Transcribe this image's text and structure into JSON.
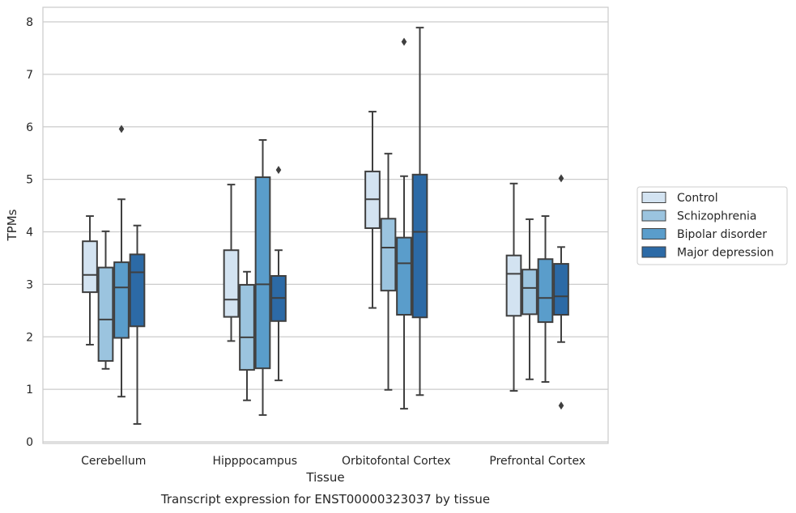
{
  "chart_data": {
    "type": "boxplot",
    "caption": "Transcript expression for ENST00000323037 by tissue",
    "xlabel": "Tissue",
    "ylabel": "TPMs",
    "ylim": [
      0,
      8
    ],
    "yticks": [
      0,
      1,
      2,
      3,
      4,
      5,
      6,
      7,
      8
    ],
    "grid": "horizontal",
    "legend_position": "right",
    "categories": [
      "Cerebellum",
      "Hipppocampus",
      "Orbitofontal Cortex",
      "Prefrontal Cortex"
    ],
    "series": [
      {
        "name": "Control",
        "color": "#d3e3f1",
        "boxes": [
          {
            "whislo": 1.85,
            "q1": 2.85,
            "med": 3.18,
            "q3": 3.82,
            "whishi": 4.3,
            "fliers": []
          },
          {
            "whislo": 1.92,
            "q1": 2.38,
            "med": 2.71,
            "q3": 3.65,
            "whishi": 4.9,
            "fliers": []
          },
          {
            "whislo": 2.55,
            "q1": 4.07,
            "med": 4.62,
            "q3": 5.15,
            "whishi": 6.29,
            "fliers": []
          },
          {
            "whislo": 0.97,
            "q1": 2.4,
            "med": 3.2,
            "q3": 3.55,
            "whishi": 4.92,
            "fliers": []
          }
        ]
      },
      {
        "name": "Schizophrenia",
        "color": "#9bc4df",
        "boxes": [
          {
            "whislo": 1.39,
            "q1": 1.54,
            "med": 2.33,
            "q3": 3.32,
            "whishi": 4.01,
            "fliers": []
          },
          {
            "whislo": 0.79,
            "q1": 1.37,
            "med": 1.99,
            "q3": 2.99,
            "whishi": 3.24,
            "fliers": []
          },
          {
            "whislo": 0.99,
            "q1": 2.88,
            "med": 3.7,
            "q3": 4.25,
            "whishi": 5.49,
            "fliers": []
          },
          {
            "whislo": 1.19,
            "q1": 2.43,
            "med": 2.93,
            "q3": 3.28,
            "whishi": 4.24,
            "fliers": []
          }
        ]
      },
      {
        "name": "Bipolar disorder",
        "color": "#5a9dcb",
        "boxes": [
          {
            "whislo": 0.86,
            "q1": 1.98,
            "med": 2.94,
            "q3": 3.42,
            "whishi": 4.62,
            "fliers": [
              5.96
            ]
          },
          {
            "whislo": 0.51,
            "q1": 1.4,
            "med": 3.0,
            "q3": 5.04,
            "whishi": 5.75,
            "fliers": []
          },
          {
            "whislo": 0.63,
            "q1": 2.42,
            "med": 3.4,
            "q3": 3.89,
            "whishi": 5.06,
            "fliers": [
              7.62
            ]
          },
          {
            "whislo": 1.14,
            "q1": 2.28,
            "med": 2.74,
            "q3": 3.48,
            "whishi": 4.3,
            "fliers": []
          }
        ]
      },
      {
        "name": "Major depression",
        "color": "#2c6aa6",
        "boxes": [
          {
            "whislo": 0.34,
            "q1": 2.2,
            "med": 3.23,
            "q3": 3.57,
            "whishi": 4.12,
            "fliers": []
          },
          {
            "whislo": 1.17,
            "q1": 2.3,
            "med": 2.74,
            "q3": 3.16,
            "whishi": 3.65,
            "fliers": [
              5.18
            ]
          },
          {
            "whislo": 0.89,
            "q1": 2.37,
            "med": 4.0,
            "q3": 5.09,
            "whishi": 7.89,
            "fliers": []
          },
          {
            "whislo": 1.9,
            "q1": 2.42,
            "med": 2.77,
            "q3": 3.39,
            "whishi": 3.71,
            "fliers": [
              5.02,
              0.69
            ]
          }
        ]
      }
    ]
  }
}
